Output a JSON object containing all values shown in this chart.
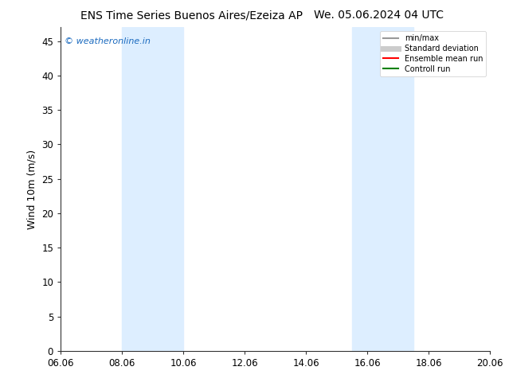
{
  "title_left": "ENS Time Series Buenos Aires/Ezeiza AP",
  "title_right": "We. 05.06.2024 04 UTC",
  "ylabel": "Wind 10m (m/s)",
  "xtick_labels": [
    "06.06",
    "08.06",
    "10.06",
    "12.06",
    "14.06",
    "16.06",
    "18.06",
    "20.06"
  ],
  "xtick_positions": [
    0,
    2,
    4,
    6,
    8,
    10,
    12,
    14
  ],
  "ylim": [
    0,
    47
  ],
  "ytick_positions": [
    0,
    5,
    10,
    15,
    20,
    25,
    30,
    35,
    40,
    45
  ],
  "ytick_labels": [
    "0",
    "5",
    "10",
    "15",
    "20",
    "25",
    "30",
    "35",
    "40",
    "45"
  ],
  "shaded_bands": [
    {
      "x_start": 2,
      "x_end": 4
    },
    {
      "x_start": 9.5,
      "x_end": 11.5
    }
  ],
  "shaded_color": "#ddeeff",
  "bg_color": "#ffffff",
  "plot_bg_color": "#ffffff",
  "watermark_text": "© weatheronline.in",
  "watermark_color": "#1a6abf",
  "legend_entries": [
    {
      "label": "min/max",
      "color": "#999999",
      "lw": 1.5,
      "style": "-"
    },
    {
      "label": "Standard deviation",
      "color": "#cccccc",
      "lw": 5,
      "style": "-"
    },
    {
      "label": "Ensemble mean run",
      "color": "#ff0000",
      "lw": 1.5,
      "style": "-"
    },
    {
      "label": "Controll run",
      "color": "#008000",
      "lw": 1.5,
      "style": "-"
    }
  ],
  "title_fontsize": 10,
  "tick_fontsize": 8.5,
  "ylabel_fontsize": 9,
  "watermark_fontsize": 8
}
